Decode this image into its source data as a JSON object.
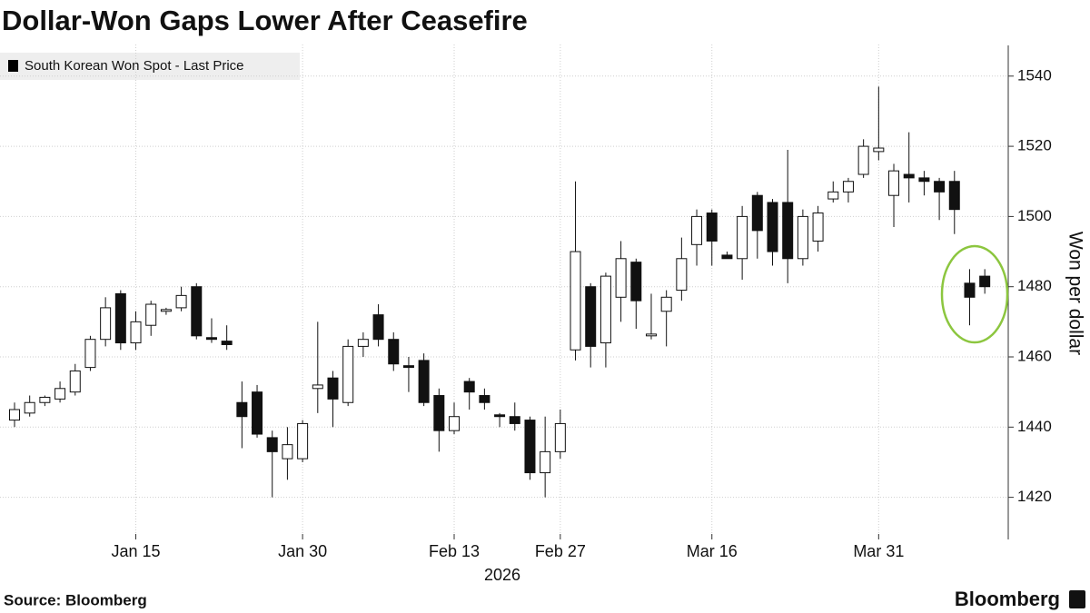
{
  "chart_data": {
    "type": "candlestick",
    "title": "Dollar-Won Gaps Lower After Ceasefire",
    "source": "Source: Bloomberg",
    "brand": "Bloomberg",
    "y_axis_label": "Won per dollar",
    "x_axis_label": "2026",
    "legend": [
      {
        "name": "South Korean Won Spot - Last Price",
        "color": "#000000"
      }
    ],
    "up_color": "#ffffff",
    "down_color": "#111111",
    "edge_color": "#111111",
    "grid": true,
    "ylim": [
      1408,
      1549
    ],
    "yticks": [
      1420,
      1440,
      1460,
      1480,
      1500,
      1520,
      1540
    ],
    "categories": [
      null,
      null,
      null,
      null,
      null,
      null,
      null,
      null,
      "Jan 15",
      null,
      null,
      null,
      null,
      null,
      null,
      null,
      null,
      null,
      null,
      "Jan 30",
      null,
      null,
      null,
      null,
      null,
      null,
      null,
      null,
      null,
      "Feb 13",
      null,
      null,
      null,
      null,
      null,
      null,
      "Feb 27",
      null,
      null,
      null,
      null,
      null,
      null,
      null,
      null,
      null,
      "Mar 16",
      null,
      null,
      null,
      null,
      null,
      null,
      null,
      null,
      null,
      null,
      "Mar 31",
      null,
      null,
      null,
      null,
      null,
      null,
      null
    ],
    "open": [
      1442,
      1444,
      1447,
      1448,
      1450,
      1457,
      1465,
      1478,
      1464,
      1469,
      1473,
      1474,
      1480,
      1465.5,
      1464.5,
      1447,
      1450,
      1437,
      1431,
      1431,
      1451,
      1454,
      1447,
      1463,
      1472,
      1465,
      1457.5,
      1459,
      1449,
      1439,
      1453,
      1449,
      1443.5,
      1443,
      1442,
      1427,
      1433,
      1462,
      1480,
      1464,
      1477,
      1487,
      1466,
      1473,
      1479,
      1492,
      1501,
      1489,
      1488,
      1506,
      1504,
      1504,
      1488,
      1493,
      1505,
      1507,
      1512,
      1518.5,
      1506,
      1512,
      1511,
      1510,
      1510,
      1481,
      1483
    ],
    "high": [
      1447,
      1449,
      1449,
      1453,
      1458,
      1466,
      1477,
      1479,
      1473,
      1476,
      1474,
      1480,
      1481,
      1471,
      1469,
      1453,
      1452,
      1439,
      1440,
      1442,
      1470,
      1456,
      1465,
      1467,
      1475,
      1467,
      1460,
      1461,
      1451,
      1447,
      1454,
      1451,
      1444,
      1447,
      1443,
      1443,
      1445,
      1510,
      1481,
      1484,
      1493,
      1488,
      1478,
      1479,
      1494,
      1502,
      1502,
      1490,
      1503,
      1507,
      1505,
      1519,
      1502,
      1503,
      1510,
      1511,
      1522,
      1537,
      1515,
      1524,
      1513,
      1511,
      1513,
      1485,
      1485
    ],
    "low": [
      1440,
      1443,
      1446,
      1447,
      1449,
      1456,
      1463,
      1462,
      1462,
      1466,
      1472,
      1473,
      1465,
      1464,
      1462,
      1434,
      1437,
      1420,
      1425,
      1430,
      1444,
      1440,
      1446,
      1460,
      1463,
      1456,
      1450,
      1446,
      1433,
      1438,
      1445,
      1445,
      1440,
      1439,
      1425,
      1420,
      1431,
      1459,
      1457,
      1457,
      1470,
      1468,
      1465,
      1463,
      1476,
      1486,
      1486,
      1488,
      1482,
      1488,
      1486,
      1481,
      1486,
      1490,
      1504,
      1504,
      1511,
      1516,
      1497,
      1504,
      1506,
      1499,
      1495,
      1469,
      1478
    ],
    "close": [
      1445,
      1447,
      1448.5,
      1451,
      1456,
      1465,
      1474,
      1464,
      1470,
      1475,
      1473.5,
      1477.5,
      1466,
      1465,
      1463.5,
      1443,
      1438,
      1433,
      1435,
      1441,
      1452,
      1448,
      1463,
      1465,
      1465,
      1458,
      1457,
      1447,
      1439,
      1443,
      1450,
      1447,
      1443,
      1441,
      1427,
      1433,
      1441,
      1490,
      1463,
      1483,
      1488,
      1476,
      1466.5,
      1477,
      1488,
      1500,
      1493,
      1488,
      1500,
      1496,
      1490,
      1488,
      1500,
      1501,
      1507,
      1510,
      1520,
      1519.5,
      1513,
      1511,
      1510,
      1507,
      1502,
      1477,
      1480
    ]
  }
}
